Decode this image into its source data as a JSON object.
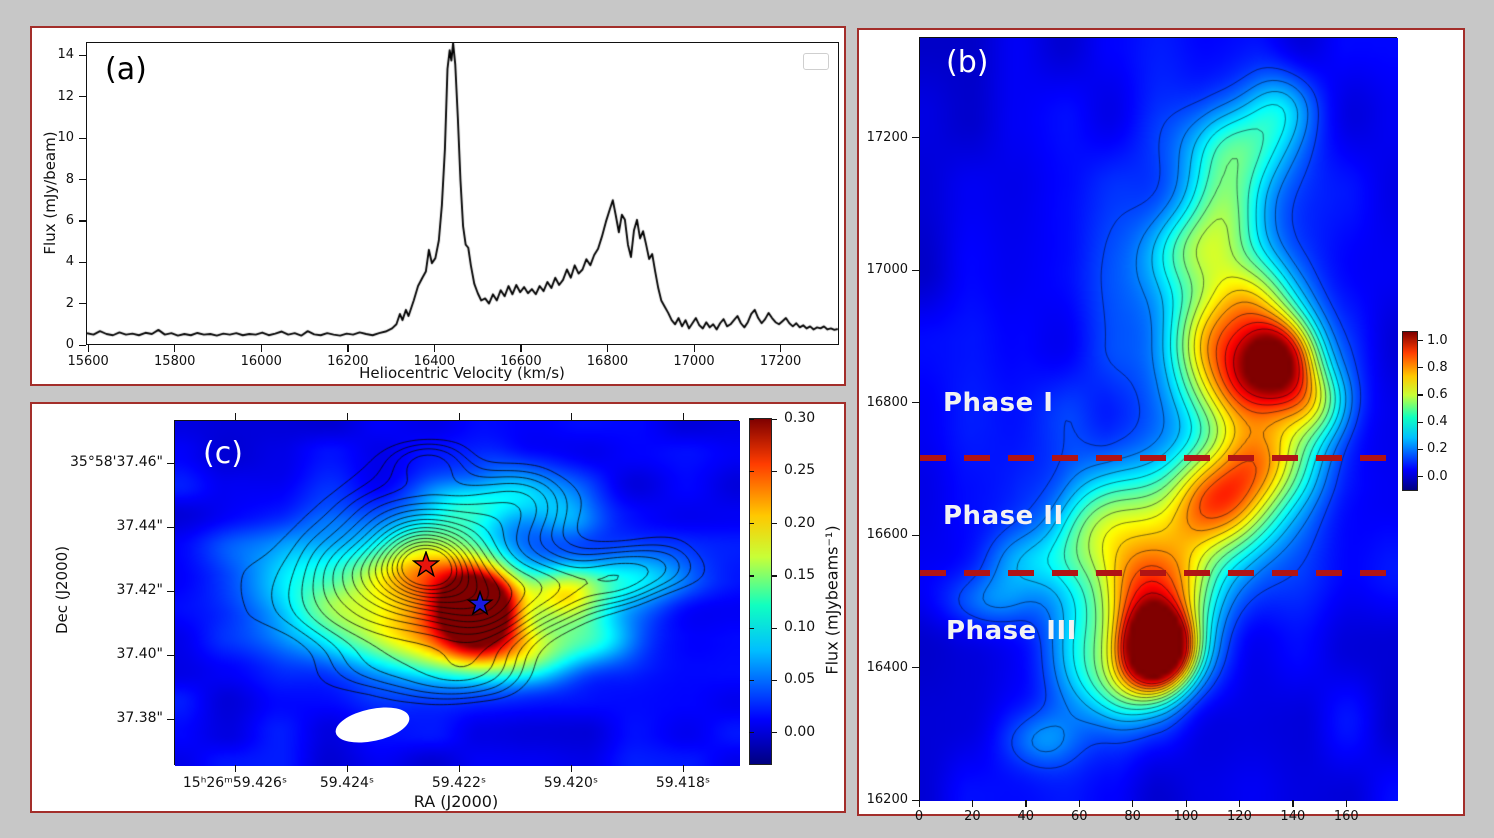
{
  "figure": {
    "bg": "#c7c7c7",
    "panel_bg": "#ffffff",
    "panel_border_color": "#a32e2a",
    "dash_line_color": "#b01414",
    "contour_color_b": "rgba(5,5,25,0.6)",
    "contour_color_c": "rgba(8,8,8,0.8)"
  },
  "chart_data": [
    {
      "id": "a",
      "type": "line",
      "tag": "(a)",
      "xlabel": "Heliocentric Velocity (km/s)",
      "ylabel": "Flux (mJy/beam)",
      "xlim": [
        15595,
        17335
      ],
      "ylim": [
        0,
        14.65
      ],
      "xticks": [
        15600,
        15800,
        16000,
        16200,
        16400,
        16600,
        16800,
        17000,
        17200
      ],
      "yticks": [
        0,
        2,
        4,
        6,
        8,
        10,
        12,
        14
      ],
      "line_color": "#000000",
      "has_empty_legend_box": true,
      "points": [
        [
          15595,
          0.62
        ],
        [
          15610,
          0.55
        ],
        [
          15625,
          0.72
        ],
        [
          15640,
          0.58
        ],
        [
          15655,
          0.52
        ],
        [
          15670,
          0.66
        ],
        [
          15685,
          0.55
        ],
        [
          15700,
          0.6
        ],
        [
          15715,
          0.52
        ],
        [
          15730,
          0.64
        ],
        [
          15745,
          0.58
        ],
        [
          15760,
          0.78
        ],
        [
          15775,
          0.55
        ],
        [
          15790,
          0.62
        ],
        [
          15805,
          0.5
        ],
        [
          15820,
          0.58
        ],
        [
          15835,
          0.52
        ],
        [
          15850,
          0.63
        ],
        [
          15865,
          0.55
        ],
        [
          15880,
          0.58
        ],
        [
          15895,
          0.5
        ],
        [
          15910,
          0.6
        ],
        [
          15925,
          0.55
        ],
        [
          15940,
          0.62
        ],
        [
          15955,
          0.52
        ],
        [
          15970,
          0.58
        ],
        [
          15985,
          0.55
        ],
        [
          16000,
          0.65
        ],
        [
          16015,
          0.52
        ],
        [
          16030,
          0.6
        ],
        [
          16045,
          0.7
        ],
        [
          16060,
          0.55
        ],
        [
          16075,
          0.62
        ],
        [
          16090,
          0.5
        ],
        [
          16105,
          0.72
        ],
        [
          16120,
          0.56
        ],
        [
          16135,
          0.52
        ],
        [
          16150,
          0.62
        ],
        [
          16165,
          0.55
        ],
        [
          16180,
          0.5
        ],
        [
          16195,
          0.6
        ],
        [
          16210,
          0.55
        ],
        [
          16225,
          0.66
        ],
        [
          16240,
          0.58
        ],
        [
          16255,
          0.52
        ],
        [
          16270,
          0.62
        ],
        [
          16285,
          0.7
        ],
        [
          16300,
          0.85
        ],
        [
          16310,
          1.05
        ],
        [
          16318,
          1.55
        ],
        [
          16324,
          1.25
        ],
        [
          16332,
          1.75
        ],
        [
          16338,
          1.45
        ],
        [
          16350,
          2.2
        ],
        [
          16360,
          2.9
        ],
        [
          16370,
          3.3
        ],
        [
          16378,
          3.6
        ],
        [
          16385,
          4.65
        ],
        [
          16392,
          4.0
        ],
        [
          16400,
          4.25
        ],
        [
          16408,
          5.1
        ],
        [
          16415,
          6.8
        ],
        [
          16422,
          9.5
        ],
        [
          16428,
          13.4
        ],
        [
          16433,
          14.3
        ],
        [
          16437,
          13.8
        ],
        [
          16441,
          14.65
        ],
        [
          16446,
          13.6
        ],
        [
          16452,
          11.0
        ],
        [
          16458,
          8.0
        ],
        [
          16464,
          5.8
        ],
        [
          16470,
          4.9
        ],
        [
          16476,
          4.75
        ],
        [
          16482,
          3.9
        ],
        [
          16490,
          3.0
        ],
        [
          16498,
          2.55
        ],
        [
          16506,
          2.2
        ],
        [
          16515,
          2.3
        ],
        [
          16524,
          2.05
        ],
        [
          16533,
          2.5
        ],
        [
          16542,
          2.2
        ],
        [
          16551,
          2.7
        ],
        [
          16560,
          2.4
        ],
        [
          16569,
          2.9
        ],
        [
          16578,
          2.5
        ],
        [
          16587,
          2.95
        ],
        [
          16596,
          2.6
        ],
        [
          16605,
          2.85
        ],
        [
          16614,
          2.55
        ],
        [
          16623,
          2.75
        ],
        [
          16632,
          2.5
        ],
        [
          16641,
          2.9
        ],
        [
          16650,
          2.65
        ],
        [
          16659,
          3.1
        ],
        [
          16668,
          2.8
        ],
        [
          16677,
          3.3
        ],
        [
          16686,
          2.95
        ],
        [
          16695,
          3.2
        ],
        [
          16704,
          3.7
        ],
        [
          16713,
          3.3
        ],
        [
          16722,
          3.9
        ],
        [
          16731,
          3.5
        ],
        [
          16740,
          3.7
        ],
        [
          16749,
          4.2
        ],
        [
          16758,
          3.9
        ],
        [
          16767,
          4.4
        ],
        [
          16776,
          4.7
        ],
        [
          16785,
          5.3
        ],
        [
          16794,
          6.0
        ],
        [
          16803,
          6.6
        ],
        [
          16810,
          7.05
        ],
        [
          16817,
          6.3
        ],
        [
          16824,
          5.5
        ],
        [
          16831,
          6.35
        ],
        [
          16838,
          6.1
        ],
        [
          16845,
          4.9
        ],
        [
          16852,
          4.3
        ],
        [
          16859,
          5.6
        ],
        [
          16866,
          6.1
        ],
        [
          16873,
          5.2
        ],
        [
          16880,
          5.55
        ],
        [
          16887,
          4.9
        ],
        [
          16894,
          4.2
        ],
        [
          16901,
          4.45
        ],
        [
          16908,
          3.6
        ],
        [
          16915,
          2.8
        ],
        [
          16922,
          2.2
        ],
        [
          16930,
          1.9
        ],
        [
          16938,
          1.6
        ],
        [
          16946,
          1.25
        ],
        [
          16954,
          1.05
        ],
        [
          16962,
          1.35
        ],
        [
          16970,
          0.95
        ],
        [
          16978,
          1.25
        ],
        [
          16986,
          0.85
        ],
        [
          16994,
          1.1
        ],
        [
          17002,
          1.35
        ],
        [
          17010,
          1.0
        ],
        [
          17018,
          0.85
        ],
        [
          17026,
          1.15
        ],
        [
          17034,
          0.9
        ],
        [
          17042,
          1.05
        ],
        [
          17050,
          0.8
        ],
        [
          17058,
          1.1
        ],
        [
          17066,
          1.3
        ],
        [
          17074,
          0.95
        ],
        [
          17082,
          1.05
        ],
        [
          17090,
          1.25
        ],
        [
          17098,
          1.45
        ],
        [
          17106,
          1.1
        ],
        [
          17114,
          0.9
        ],
        [
          17122,
          1.15
        ],
        [
          17130,
          1.55
        ],
        [
          17138,
          1.75
        ],
        [
          17146,
          1.35
        ],
        [
          17154,
          1.1
        ],
        [
          17162,
          1.3
        ],
        [
          17170,
          1.6
        ],
        [
          17178,
          1.35
        ],
        [
          17186,
          1.15
        ],
        [
          17194,
          1.05
        ],
        [
          17202,
          1.2
        ],
        [
          17210,
          1.35
        ],
        [
          17218,
          1.1
        ],
        [
          17226,
          0.95
        ],
        [
          17234,
          1.1
        ],
        [
          17242,
          0.9
        ],
        [
          17250,
          1.0
        ],
        [
          17258,
          0.85
        ],
        [
          17266,
          0.95
        ],
        [
          17274,
          0.8
        ],
        [
          17282,
          0.9
        ],
        [
          17290,
          0.85
        ],
        [
          17298,
          0.95
        ],
        [
          17306,
          0.8
        ],
        [
          17314,
          0.85
        ],
        [
          17322,
          0.78
        ],
        [
          17330,
          0.82
        ]
      ]
    },
    {
      "id": "b",
      "type": "heatmap",
      "tag": "(b)",
      "xlim": [
        0,
        179
      ],
      "ylim": [
        16200,
        17352
      ],
      "xticks": [
        0,
        20,
        40,
        60,
        80,
        100,
        120,
        140,
        160
      ],
      "yticks": [
        16200,
        16400,
        16600,
        16800,
        17000,
        17200
      ],
      "colorbar": {
        "ticks": [
          "1.0",
          "0.8",
          "0.6",
          "0.4",
          "0.2",
          "0.0"
        ],
        "vmin": -0.106,
        "vmax": 1.07
      },
      "annotations": {
        "phases": [
          "Phase I",
          "Phase II",
          "Phase III"
        ],
        "dashed_lines_velocity": [
          16720,
          16545
        ]
      },
      "field": {
        "base": 0.02,
        "noise": 0.045,
        "noise_scale": 10,
        "noise_seed": 3,
        "blobs": [
          [
            0.502,
            0.8,
            0.05,
            0.035,
            1.3
          ],
          [
            0.446,
            0.844,
            0.067,
            0.039,
            0.4
          ],
          [
            0.435,
            0.74,
            0.056,
            0.052,
            0.4
          ],
          [
            0.53,
            0.722,
            0.067,
            0.043,
            0.45
          ],
          [
            0.641,
            0.609,
            0.078,
            0.048,
            0.5
          ],
          [
            0.502,
            0.635,
            0.1,
            0.052,
            0.35
          ],
          [
            0.362,
            0.653,
            0.067,
            0.052,
            0.3
          ],
          [
            0.725,
            0.549,
            0.078,
            0.043,
            0.45
          ],
          [
            0.753,
            0.418,
            0.056,
            0.039,
            0.8
          ],
          [
            0.669,
            0.462,
            0.078,
            0.043,
            0.5
          ],
          [
            0.825,
            0.479,
            0.056,
            0.035,
            0.4
          ],
          [
            0.613,
            0.392,
            0.067,
            0.043,
            0.4
          ],
          [
            0.697,
            0.34,
            0.067,
            0.039,
            0.35
          ],
          [
            0.585,
            0.28,
            0.067,
            0.039,
            0.3
          ],
          [
            0.641,
            0.219,
            0.056,
            0.043,
            0.28
          ],
          [
            0.669,
            0.141,
            0.078,
            0.039,
            0.3
          ],
          [
            0.753,
            0.089,
            0.056,
            0.035,
            0.22
          ],
          [
            0.334,
            0.8,
            0.056,
            0.052,
            0.22
          ],
          [
            0.251,
            0.922,
            0.056,
            0.026,
            0.15
          ],
          [
            0.139,
            0.74,
            0.067,
            0.026,
            0.15
          ],
          [
            0.223,
            0.688,
            0.067,
            0.03,
            0.16
          ],
          [
            0.55,
            0.55,
            0.2,
            0.22,
            0.1
          ],
          [
            0.62,
            0.3,
            0.16,
            0.16,
            0.08
          ]
        ]
      },
      "contour_levels": [
        0.12,
        0.19,
        0.26,
        0.33,
        0.4,
        0.47,
        0.54,
        0.61,
        0.68,
        0.75,
        0.82,
        0.89,
        0.96
      ]
    },
    {
      "id": "c",
      "type": "heatmap",
      "tag": "(c)",
      "xlabel": "RA (J2000)",
      "ylabel": "Dec (J2000)",
      "xtick_labels": [
        "15ʰ26ᵐ59.426ˢ",
        "59.424ˢ",
        "59.422ˢ",
        "59.420ˢ",
        "59.418ˢ"
      ],
      "ytick_labels": [
        "35°58'37.46\"",
        "37.44\"",
        "37.42\"",
        "37.40\"",
        "37.38\""
      ],
      "colorbar": {
        "label": "Flux (mJybeams⁻¹)",
        "ticks": [
          "0.30",
          "0.25",
          "0.20",
          "0.15",
          "0.10",
          "0.05",
          "0.00"
        ],
        "vmin": -0.031,
        "vmax": 0.301
      },
      "markers": [
        {
          "name": "red-star",
          "shape": "star",
          "color": "#e8150d",
          "outline": "#000000"
        },
        {
          "name": "blue-star",
          "shape": "star",
          "color": "#1a1ae0",
          "outline": "#000000"
        }
      ],
      "beam": {
        "color": "#ffffff"
      },
      "color_field": {
        "base": 0.008,
        "noise": 0.012,
        "noise_scale": 11,
        "noise_seed": 5,
        "blobs": [
          [
            0.54,
            0.53,
            0.045,
            0.075,
            0.3
          ],
          [
            0.54,
            0.6,
            0.06,
            0.08,
            0.08
          ],
          [
            0.46,
            0.64,
            0.09,
            0.08,
            0.12
          ],
          [
            0.44,
            0.42,
            0.07,
            0.09,
            0.11
          ],
          [
            0.5,
            0.47,
            0.1,
            0.12,
            0.07
          ],
          [
            0.69,
            0.51,
            0.055,
            0.06,
            0.15
          ],
          [
            0.82,
            0.46,
            0.07,
            0.06,
            0.07
          ],
          [
            0.24,
            0.44,
            0.1,
            0.12,
            0.075
          ],
          [
            0.33,
            0.57,
            0.09,
            0.1,
            0.08
          ],
          [
            0.62,
            0.68,
            0.08,
            0.06,
            0.1
          ],
          [
            0.75,
            0.63,
            0.06,
            0.05,
            0.07
          ],
          [
            0.62,
            0.2,
            0.06,
            0.06,
            0.07
          ],
          [
            0.51,
            0.25,
            0.06,
            0.06,
            0.07
          ],
          [
            0.7,
            0.28,
            0.05,
            0.05,
            0.05
          ]
        ]
      },
      "contour_field": {
        "base": 0,
        "noise": 0.035,
        "noise_scale": 9,
        "noise_seed": 11,
        "blobs": [
          [
            0.444,
            0.417,
            0.05,
            0.065,
            0.55
          ],
          [
            0.444,
            0.417,
            0.105,
            0.14,
            0.5
          ],
          [
            0.54,
            0.53,
            0.06,
            0.08,
            0.28
          ],
          [
            0.66,
            0.5,
            0.06,
            0.07,
            0.22
          ],
          [
            0.78,
            0.46,
            0.05,
            0.06,
            0.16
          ],
          [
            0.3,
            0.5,
            0.1,
            0.12,
            0.14
          ],
          [
            0.52,
            0.72,
            0.07,
            0.06,
            0.16
          ],
          [
            0.6,
            0.24,
            0.06,
            0.07,
            0.16
          ],
          [
            0.45,
            0.12,
            0.05,
            0.05,
            0.1
          ],
          [
            0.86,
            0.42,
            0.05,
            0.05,
            0.1
          ],
          [
            0.36,
            0.7,
            0.07,
            0.06,
            0.1
          ]
        ]
      },
      "contour_levels": [
        0.055,
        0.085,
        0.115,
        0.15,
        0.19,
        0.235,
        0.285,
        0.34,
        0.4,
        0.46,
        0.525,
        0.59,
        0.66,
        0.73,
        0.8,
        0.87,
        0.935
      ]
    }
  ]
}
